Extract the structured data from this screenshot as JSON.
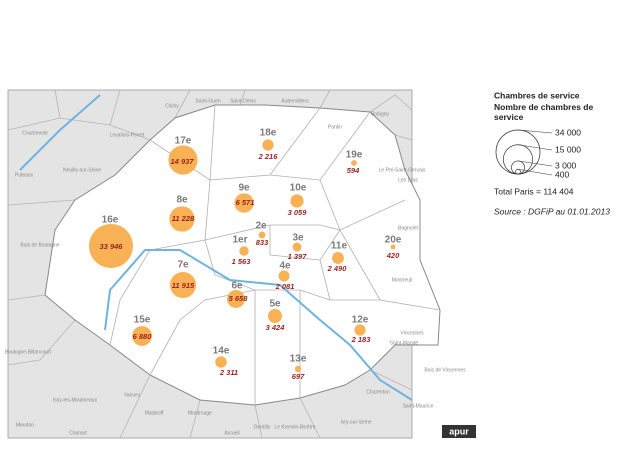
{
  "chart_data": {
    "type": "bubble-map",
    "categories": [
      "1er",
      "2e",
      "3e",
      "4e",
      "5e",
      "6e",
      "7e",
      "8e",
      "9e",
      "10e",
      "11e",
      "12e",
      "13e",
      "14e",
      "15e",
      "16e",
      "17e",
      "18e",
      "19e",
      "20e"
    ],
    "values": [
      1563,
      833,
      1397,
      2081,
      3424,
      5658,
      11915,
      11228,
      6571,
      3059,
      2490,
      2183,
      697,
      2311,
      6880,
      33946,
      14937,
      2216,
      594,
      420
    ],
    "value_labels": [
      "1 563",
      "833",
      "1 397",
      "2 081",
      "3 424",
      "5 658",
      "11 915",
      "11 228",
      "6 571",
      "3 059",
      "2 490",
      "2 183",
      "697",
      "2 311",
      "6 880",
      "33 946",
      "14 937",
      "2 216",
      "594",
      "420"
    ],
    "color": "#f7a941",
    "legend": {
      "title": "Chambres de service",
      "subtitle": "Nombre de chambres de service",
      "sizes": [
        {
          "value": 34000,
          "label": "34 000"
        },
        {
          "value": 15000,
          "label": "15 000"
        },
        {
          "value": 3000,
          "label": "3 000"
        },
        400
      ],
      "total": "Total Paris = 114 404",
      "source": "Source : DGFiP au 01.01.2013"
    },
    "places": [
      "Clichy",
      "Saint-Ouen",
      "Saint-Denis",
      "Aubervilliers",
      "Pantin",
      "Bobigny",
      "Courbevoie",
      "Levallois-Perret",
      "Neuilly-sur-Seine",
      "Puteaux",
      "Bois de Boulogne",
      "Le Pré-Saint-Gervais",
      "Les Lilas",
      "Bagnolet",
      "Montreuil",
      "Vincennes",
      "Saint-Mandé",
      "Bois de Vincennes",
      "Boulogne-Billancourt",
      "Issy-les-Moulineaux",
      "Vanves",
      "Malakoff",
      "Montrouge",
      "Gentilly",
      "Le Kremlin-Bicêtre",
      "Ivry-sur-Seine",
      "Charenton",
      "Saint-Maurice",
      "Meudon",
      "Clamart",
      "Arcueil"
    ],
    "logo": "apur"
  }
}
